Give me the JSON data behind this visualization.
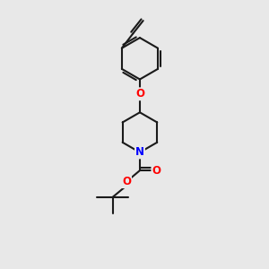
{
  "background_color": "#e8e8e8",
  "bond_color": "#1a1a1a",
  "bond_width": 1.5,
  "atom_colors": {
    "O": "#ff0000",
    "N": "#0000ff"
  },
  "font_size": 8.5,
  "figsize": [
    3.0,
    3.0
  ],
  "dpi": 100
}
